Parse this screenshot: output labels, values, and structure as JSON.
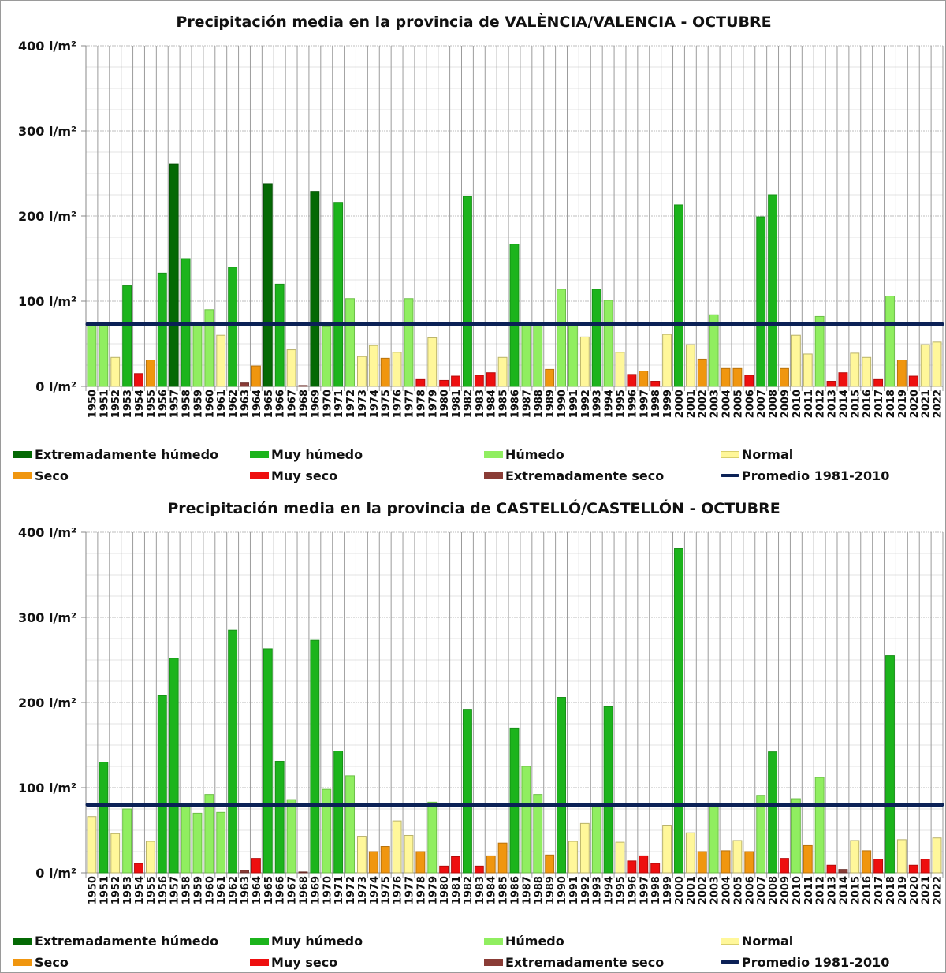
{
  "legend": {
    "items": [
      {
        "key": "EH",
        "label": "Extremadamente húmedo",
        "color": "#046904",
        "type": "box"
      },
      {
        "key": "MH",
        "label": "Muy húmedo",
        "color": "#1cb41c",
        "type": "box"
      },
      {
        "key": "H",
        "label": "Húmedo",
        "color": "#90ee60",
        "type": "box"
      },
      {
        "key": "N",
        "label": "Normal",
        "color": "#fff79a",
        "type": "box"
      },
      {
        "key": "S",
        "label": "Seco",
        "color": "#f0960f",
        "type": "box"
      },
      {
        "key": "MS",
        "label": "Muy seco",
        "color": "#ee0f0f",
        "type": "box"
      },
      {
        "key": "ES",
        "label": "Extremadamente seco",
        "color": "#8a3c36",
        "type": "box"
      },
      {
        "key": "avg",
        "label": "Promedio 1981-2010",
        "color": "#0b2156",
        "type": "line"
      }
    ]
  },
  "chart_data": [
    {
      "type": "bar",
      "title": "Precipitación media en la provincia de VALÈNCIA/VALENCIA - OCTUBRE",
      "xlabel": "",
      "ylabel": "",
      "ylim": [
        0,
        400
      ],
      "y_ticks": [
        0,
        100,
        200,
        300,
        400
      ],
      "y_tick_labels": [
        "0 l/m²",
        "100 l/m²",
        "200 l/m²",
        "300 l/m²",
        "400 l/m²"
      ],
      "grid": true,
      "legend_position": "bottom",
      "average_1981_2010": 73,
      "categories": [
        "1950",
        "1951",
        "1952",
        "1953",
        "1954",
        "1955",
        "1956",
        "1957",
        "1958",
        "1959",
        "1960",
        "1961",
        "1962",
        "1963",
        "1964",
        "1965",
        "1966",
        "1967",
        "1968",
        "1969",
        "1970",
        "1971",
        "1972",
        "1973",
        "1974",
        "1975",
        "1976",
        "1977",
        "1978",
        "1979",
        "1980",
        "1981",
        "1982",
        "1983",
        "1984",
        "1985",
        "1986",
        "1987",
        "1988",
        "1989",
        "1990",
        "1991",
        "1992",
        "1993",
        "1994",
        "1995",
        "1996",
        "1997",
        "1998",
        "1999",
        "2000",
        "2001",
        "2002",
        "2003",
        "2004",
        "2005",
        "2006",
        "2007",
        "2008",
        "2009",
        "2010",
        "2011",
        "2012",
        "2013",
        "2014",
        "2015",
        "2016",
        "2017",
        "2018",
        "2019",
        "2020",
        "2021",
        "2022"
      ],
      "values": [
        72,
        74,
        34,
        118,
        15,
        31,
        133,
        261,
        150,
        73,
        90,
        60,
        140,
        4,
        24,
        238,
        120,
        43,
        1,
        229,
        70,
        216,
        103,
        35,
        48,
        33,
        40,
        103,
        8,
        57,
        7,
        12,
        223,
        13,
        16,
        34,
        167,
        75,
        74,
        20,
        114,
        74,
        58,
        114,
        101,
        40,
        14,
        18,
        6,
        61,
        213,
        49,
        32,
        84,
        21,
        21,
        13,
        199,
        225,
        21,
        60,
        38,
        82,
        6,
        16,
        39,
        34,
        8,
        106,
        31,
        12,
        49,
        52
      ],
      "classes": [
        "H",
        "H",
        "N",
        "MH",
        "MS",
        "S",
        "MH",
        "EH",
        "MH",
        "H",
        "H",
        "N",
        "MH",
        "ES",
        "S",
        "EH",
        "MH",
        "N",
        "ES",
        "EH",
        "H",
        "MH",
        "H",
        "N",
        "N",
        "S",
        "N",
        "H",
        "MS",
        "N",
        "MS",
        "MS",
        "MH",
        "MS",
        "MS",
        "N",
        "MH",
        "H",
        "H",
        "S",
        "H",
        "H",
        "N",
        "MH",
        "H",
        "N",
        "MS",
        "S",
        "MS",
        "N",
        "MH",
        "N",
        "S",
        "H",
        "S",
        "S",
        "MS",
        "MH",
        "MH",
        "S",
        "N",
        "N",
        "H",
        "MS",
        "MS",
        "N",
        "N",
        "MS",
        "H",
        "S",
        "MS",
        "N",
        "N"
      ]
    },
    {
      "type": "bar",
      "title": "Precipitación media en la provincia de CASTELLÓ/CASTELLÓN -  OCTUBRE",
      "xlabel": "",
      "ylabel": "",
      "ylim": [
        0,
        400
      ],
      "y_ticks": [
        0,
        100,
        200,
        300,
        400
      ],
      "y_tick_labels": [
        "0 l/m²",
        "100 l/m²",
        "200 l/m²",
        "300 l/m²",
        "400 l/m²"
      ],
      "grid": true,
      "legend_position": "bottom",
      "average_1981_2010": 80,
      "categories": [
        "1950",
        "1951",
        "1952",
        "1953",
        "1954",
        "1955",
        "1956",
        "1957",
        "1958",
        "1959",
        "1960",
        "1961",
        "1962",
        "1963",
        "1964",
        "1965",
        "1966",
        "1967",
        "1968",
        "1969",
        "1970",
        "1971",
        "1972",
        "1973",
        "1974",
        "1975",
        "1976",
        "1977",
        "1978",
        "1979",
        "1980",
        "1981",
        "1982",
        "1983",
        "1984",
        "1985",
        "1986",
        "1987",
        "1988",
        "1989",
        "1990",
        "1991",
        "1992",
        "1993",
        "1994",
        "1995",
        "1996",
        "1997",
        "1998",
        "1999",
        "2000",
        "2001",
        "2002",
        "2003",
        "2004",
        "2005",
        "2006",
        "2007",
        "2008",
        "2009",
        "2010",
        "2011",
        "2012",
        "2013",
        "2014",
        "2015",
        "2016",
        "2017",
        "2018",
        "2019",
        "2020",
        "2021",
        "2022"
      ],
      "values": [
        66,
        130,
        46,
        75,
        11,
        37,
        208,
        252,
        81,
        70,
        92,
        71,
        285,
        3,
        17,
        263,
        131,
        86,
        1,
        273,
        98,
        143,
        114,
        43,
        25,
        31,
        61,
        44,
        25,
        83,
        8,
        19,
        192,
        8,
        20,
        35,
        170,
        125,
        92,
        21,
        206,
        37,
        58,
        80,
        195,
        36,
        14,
        20,
        11,
        56,
        381,
        47,
        25,
        82,
        26,
        38,
        25,
        91,
        142,
        17,
        87,
        32,
        112,
        9,
        4,
        38,
        26,
        16,
        255,
        39,
        9,
        16,
        41
      ],
      "classes": [
        "N",
        "MH",
        "N",
        "H",
        "MS",
        "N",
        "MH",
        "MH",
        "H",
        "H",
        "H",
        "H",
        "MH",
        "ES",
        "MS",
        "MH",
        "MH",
        "H",
        "ES",
        "MH",
        "H",
        "MH",
        "H",
        "N",
        "S",
        "S",
        "N",
        "N",
        "S",
        "H",
        "MS",
        "MS",
        "MH",
        "MS",
        "S",
        "S",
        "MH",
        "H",
        "H",
        "S",
        "MH",
        "N",
        "N",
        "H",
        "MH",
        "N",
        "MS",
        "MS",
        "MS",
        "N",
        "MH",
        "N",
        "S",
        "H",
        "S",
        "N",
        "S",
        "H",
        "MH",
        "MS",
        "H",
        "S",
        "H",
        "MS",
        "ES",
        "N",
        "S",
        "MS",
        "MH",
        "N",
        "MS",
        "MS",
        "N"
      ]
    }
  ]
}
